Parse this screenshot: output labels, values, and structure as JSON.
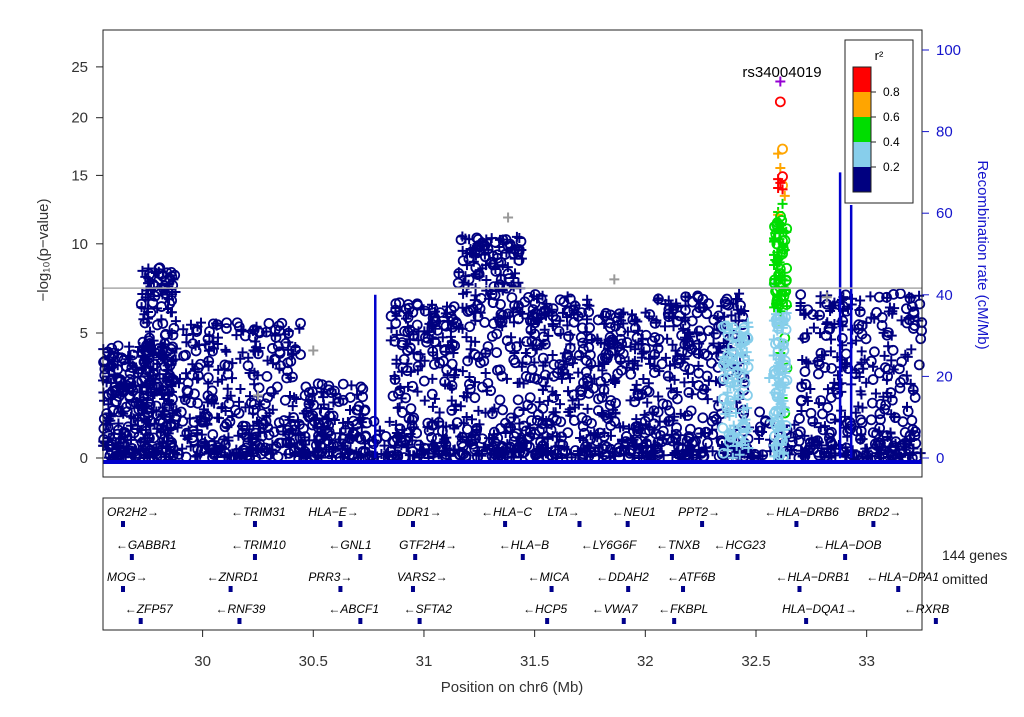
{
  "chart_data": {
    "type": "scatter",
    "title": "",
    "top_snp": "rs34004019",
    "xlabel": "Position on chr6 (Mb)",
    "ylabel_left": "−log₁₀(p−value)",
    "ylabel_right": "Recombination rate (cM/Mb)",
    "xlim": [
      29.55,
      33.25
    ],
    "x_ticks": [
      "30",
      "30.5",
      "31",
      "31.5",
      "32",
      "32.5",
      "33"
    ],
    "x_tick_values": [
      30,
      30.5,
      31,
      31.5,
      32,
      32.5,
      33
    ],
    "y_ticks": [
      "0",
      "5",
      "10",
      "15",
      "20",
      "25"
    ],
    "y_tick_values": [
      0,
      5,
      10,
      15,
      20,
      25
    ],
    "y_right_ticks": [
      "0",
      "20",
      "40",
      "60",
      "80",
      "100"
    ],
    "y_right_tick_values": [
      0,
      20,
      40,
      60,
      80,
      100
    ],
    "significance_line": 7.3,
    "legend": {
      "title": "r²",
      "placement": "top-right",
      "ticks": [
        "0.8",
        "0.6",
        "0.4",
        "0.2"
      ],
      "bins": [
        {
          "color": "#ff0000",
          "range": [
            0.8,
            1.0
          ]
        },
        {
          "color": "#ffa500",
          "range": [
            0.6,
            0.8
          ]
        },
        {
          "color": "#00dd00",
          "range": [
            0.4,
            0.6
          ]
        },
        {
          "color": "#87ceeb",
          "range": [
            0.2,
            0.4
          ]
        },
        {
          "color": "#000080",
          "range": [
            0.0,
            0.2
          ]
        }
      ]
    },
    "colors": {
      "low_ld": "#000080",
      "no_ld": "#999999",
      "recomb": "#0000cc",
      "axis_right": "#1515cc",
      "top": "#9400d3"
    },
    "clusters": [
      {
        "x": [
          29.55,
          29.9
        ],
        "ymax": 4.5,
        "n": 240
      },
      {
        "x": [
          29.72,
          29.88
        ],
        "ymax": 8.5,
        "n": 140
      },
      {
        "x": [
          29.9,
          30.45
        ],
        "ymax": 5.5,
        "n": 220
      },
      {
        "x": [
          30.45,
          30.75
        ],
        "ymax": 3.0,
        "n": 100
      },
      {
        "x": [
          30.85,
          31.15
        ],
        "ymax": 6.5,
        "n": 180
      },
      {
        "x": [
          31.15,
          31.45
        ],
        "ymax": 10.5,
        "n": 220
      },
      {
        "x": [
          31.45,
          31.75
        ],
        "ymax": 7.0,
        "n": 180
      },
      {
        "x": [
          31.75,
          32.05
        ],
        "ymax": 6.0,
        "n": 160
      },
      {
        "x": [
          32.05,
          32.45
        ],
        "ymax": 7.0,
        "n": 200
      },
      {
        "x": [
          32.7,
          33.25
        ],
        "ymax": 7.0,
        "n": 240
      }
    ],
    "light_blue_points": [
      [
        32.36,
        3.5
      ],
      [
        32.38,
        5.0
      ],
      [
        32.4,
        4.2
      ],
      [
        32.42,
        2.5
      ],
      [
        32.44,
        1.5
      ],
      [
        32.45,
        3.0
      ],
      [
        32.37,
        2.2
      ],
      [
        32.41,
        1.8
      ],
      [
        32.43,
        4.6
      ],
      [
        32.39,
        3.8
      ],
      [
        32.46,
        2.0
      ],
      [
        32.35,
        1.2
      ],
      [
        32.56,
        3.2
      ],
      [
        32.58,
        4.1
      ],
      [
        32.59,
        2.6
      ],
      [
        32.6,
        1.1
      ],
      [
        32.61,
        3.6
      ],
      [
        32.62,
        4.5
      ],
      [
        32.63,
        2.0
      ],
      [
        32.57,
        1.5
      ],
      [
        32.6,
        11.0
      ],
      [
        32.58,
        7.5
      ],
      [
        32.6,
        6.2
      ],
      [
        32.62,
        0.7
      ]
    ],
    "green_points": [
      [
        32.6,
        11.5
      ],
      [
        32.61,
        10.8
      ],
      [
        32.62,
        10.2
      ],
      [
        32.63,
        9.6
      ],
      [
        32.6,
        9.0
      ],
      [
        32.61,
        8.4
      ],
      [
        32.62,
        7.8
      ],
      [
        32.63,
        7.2
      ],
      [
        32.6,
        6.6
      ],
      [
        32.61,
        6.0
      ],
      [
        32.62,
        5.4
      ],
      [
        32.63,
        4.8
      ],
      [
        32.61,
        4.2
      ],
      [
        32.62,
        2.4
      ],
      [
        32.63,
        1.8
      ],
      [
        32.6,
        12.2
      ],
      [
        32.62,
        12.8
      ],
      [
        32.64,
        3.6
      ]
    ],
    "orange_points": [
      [
        32.6,
        16.8
      ],
      [
        32.61,
        15.6
      ],
      [
        32.62,
        14.2
      ],
      [
        32.63,
        13.4
      ],
      [
        32.6,
        12.0
      ],
      [
        32.62,
        17.2
      ]
    ],
    "red_points": [
      [
        32.6,
        14.7
      ],
      [
        32.61,
        14.4
      ],
      [
        32.62,
        14.9
      ],
      [
        32.6,
        14.0
      ],
      [
        32.62,
        13.9
      ],
      [
        32.61,
        21.5
      ]
    ],
    "top_point": [
      32.61,
      23.5
    ],
    "recomb_spikes": [
      {
        "x": 30.78,
        "rate": 40
      },
      {
        "x": 32.88,
        "rate": 70
      },
      {
        "x": 32.93,
        "rate": 62
      }
    ]
  },
  "genes": {
    "omitted_line1": "144 genes",
    "omitted_line2": "omitted",
    "rows": [
      [
        {
          "name": "OR2H2",
          "dir": "+",
          "x": 29.55
        },
        {
          "name": "TRIM31",
          "dir": "-",
          "x": 30.11
        },
        {
          "name": "HLA−E",
          "dir": "+",
          "x": 30.46
        },
        {
          "name": "DDR1",
          "dir": "+",
          "x": 30.86
        },
        {
          "name": "HLA−C",
          "dir": "-",
          "x": 31.24
        },
        {
          "name": "LTA",
          "dir": "+",
          "x": 31.54
        },
        {
          "name": "NEU1",
          "dir": "-",
          "x": 31.83
        },
        {
          "name": "PPT2",
          "dir": "+",
          "x": 32.13
        },
        {
          "name": "HLA−DRB6",
          "dir": "-",
          "x": 32.52
        },
        {
          "name": "BRD2",
          "dir": "+",
          "x": 32.94
        }
      ],
      [
        {
          "name": "GABBR1",
          "dir": "-",
          "x": 29.59
        },
        {
          "name": "TRIM10",
          "dir": "-",
          "x": 30.11
        },
        {
          "name": "GNL1",
          "dir": "-",
          "x": 30.55
        },
        {
          "name": "GTF2H4",
          "dir": "+",
          "x": 30.87
        },
        {
          "name": "HLA−B",
          "dir": "-",
          "x": 31.32
        },
        {
          "name": "LY6G6F",
          "dir": "-",
          "x": 31.69
        },
        {
          "name": "TNXB",
          "dir": "-",
          "x": 32.03
        },
        {
          "name": "HCG23",
          "dir": "-",
          "x": 32.29
        },
        {
          "name": "HLA−DOB",
          "dir": "-",
          "x": 32.74
        }
      ],
      [
        {
          "name": "MOG",
          "dir": "+",
          "x": 29.55
        },
        {
          "name": "ZNRD1",
          "dir": "-",
          "x": 30.0
        },
        {
          "name": "PRR3",
          "dir": "+",
          "x": 30.46
        },
        {
          "name": "VARS2",
          "dir": "+",
          "x": 30.86
        },
        {
          "name": "MICA",
          "dir": "-",
          "x": 31.45
        },
        {
          "name": "DDAH2",
          "dir": "-",
          "x": 31.76
        },
        {
          "name": "ATF6B",
          "dir": "-",
          "x": 32.08
        },
        {
          "name": "HLA−DRB1",
          "dir": "-",
          "x": 32.57
        },
        {
          "name": "HLA−DPA1",
          "dir": "-",
          "x": 32.98
        }
      ],
      [
        {
          "name": "ZFP57",
          "dir": "-",
          "x": 29.63
        },
        {
          "name": "RNF39",
          "dir": "-",
          "x": 30.04
        },
        {
          "name": "ABCF1",
          "dir": "-",
          "x": 30.55
        },
        {
          "name": "SFTA2",
          "dir": "-",
          "x": 30.89
        },
        {
          "name": "HCP5",
          "dir": "-",
          "x": 31.43
        },
        {
          "name": "VWA7",
          "dir": "-",
          "x": 31.74
        },
        {
          "name": "FKBPL",
          "dir": "-",
          "x": 32.04
        },
        {
          "name": "HLA−DQA1",
          "dir": "+",
          "x": 32.6
        },
        {
          "name": "RXRB",
          "dir": "-",
          "x": 33.15
        }
      ]
    ]
  }
}
